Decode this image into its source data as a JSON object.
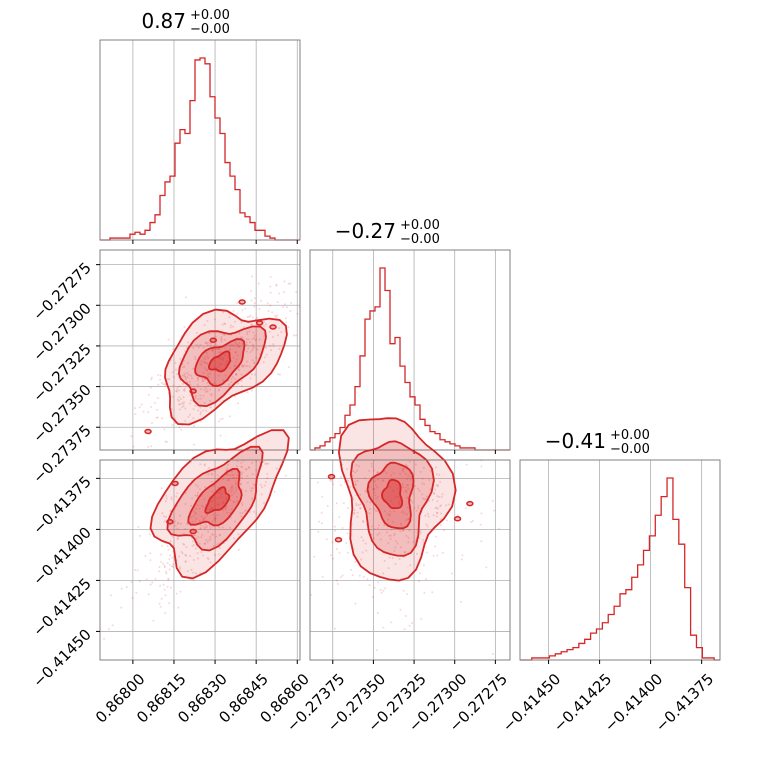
{
  "chart_data": {
    "type": "corner",
    "parameters": [
      {
        "title_value": "0.87",
        "title_err_plus": "+0.00",
        "title_err_minus": "−0.00",
        "range": [
          0.86788,
          0.86861
        ],
        "ticks": [
          {
            "value": 0.868,
            "label": "0.86800"
          },
          {
            "value": 0.86815,
            "label": "0.86815"
          },
          {
            "value": 0.8683,
            "label": "0.86830"
          },
          {
            "value": 0.86845,
            "label": "0.86845"
          },
          {
            "value": 0.8686,
            "label": "0.86860"
          }
        ],
        "histogram": [
          0,
          0,
          1,
          1,
          1,
          1,
          3,
          4,
          3,
          5,
          9,
          13,
          23,
          30,
          33,
          50,
          57,
          55,
          72,
          93,
          94,
          91,
          74,
          63,
          55,
          40,
          33,
          26,
          14,
          12,
          9,
          5,
          5,
          2,
          1,
          0,
          0,
          0,
          0,
          0
        ]
      },
      {
        "title_value": "−0.27",
        "title_err_plus": "+0.00",
        "title_err_minus": "−0.00",
        "range": [
          -0.27389,
          -0.27266
        ],
        "ticks": [
          {
            "value": -0.27375,
            "label": "−0.27375"
          },
          {
            "value": -0.2735,
            "label": "−0.27350"
          },
          {
            "value": -0.27325,
            "label": "−0.27325"
          },
          {
            "value": -0.273,
            "label": "−0.27300"
          },
          {
            "value": -0.27275,
            "label": "−0.27275"
          }
        ],
        "histogram": [
          0,
          1,
          2,
          4,
          6,
          8,
          11,
          17,
          22,
          31,
          46,
          64,
          68,
          70,
          89,
          78,
          52,
          55,
          41,
          33,
          26,
          22,
          15,
          12,
          9,
          8,
          5,
          4,
          3,
          2,
          1,
          1,
          1,
          0,
          0,
          0,
          0,
          0,
          0,
          0
        ]
      },
      {
        "title_value": "−0.41",
        "title_err_plus": "+0.00",
        "title_err_minus": "−0.00",
        "range": [
          -0.41464,
          -0.41366
        ],
        "ticks": [
          {
            "value": -0.4145,
            "label": "−0.41450"
          },
          {
            "value": -0.41425,
            "label": "−0.41425"
          },
          {
            "value": -0.414,
            "label": "−0.41400"
          },
          {
            "value": -0.41375,
            "label": "−0.41375"
          }
        ],
        "histogram": [
          0,
          0,
          1,
          1,
          1,
          2,
          3,
          4,
          5,
          6,
          8,
          10,
          13,
          15,
          18,
          22,
          26,
          32,
          34,
          40,
          46,
          53,
          60,
          70,
          79,
          88,
          68,
          56,
          35,
          12,
          6,
          1,
          1,
          0
        ]
      }
    ],
    "contours": [
      {
        "row": 1,
        "col": 0,
        "center": [
          0.86832,
          -0.27335
        ],
        "sigma": [
          0.0001,
          0.00016
        ],
        "corr": 0.75
      },
      {
        "row": 2,
        "col": 0,
        "center": [
          0.86831,
          -0.41386
        ],
        "sigma": [
          0.0001,
          0.00017
        ],
        "corr": 0.85
      },
      {
        "row": 2,
        "col": 1,
        "center": [
          -0.27338,
          -0.41383
        ],
        "sigma": [
          0.00016,
          0.00018
        ],
        "corr": 0.05
      }
    ],
    "grid": true,
    "color": "#d62728"
  }
}
